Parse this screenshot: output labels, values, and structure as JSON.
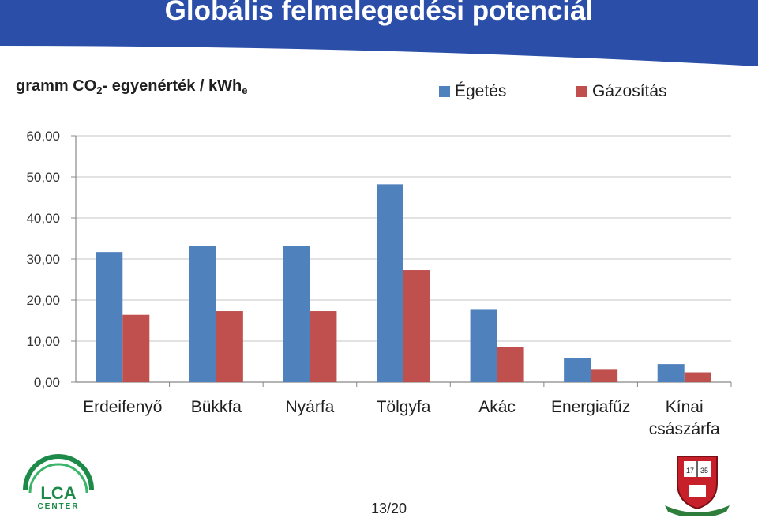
{
  "slide": {
    "title": "Globális felmelegedési potenciál",
    "page_number": "13/20"
  },
  "colors": {
    "banner": "#2b4fa8",
    "series_1": "#4f81bd",
    "series_2": "#c0504d"
  },
  "unit": {
    "prefix": "gramm CO",
    "sub1": "2",
    "middle": "- egyenérték / kWh",
    "sub2": "e"
  },
  "chart_data": {
    "type": "bar",
    "categories": [
      "Erdeifenyő",
      "Bükkfa",
      "Nyárfa",
      "Tölgyfa",
      "Akác",
      "Energiafűz",
      "Kínai császárfa"
    ],
    "series": [
      {
        "name": "Égetés",
        "values": [
          31.7,
          33.2,
          33.2,
          48.2,
          17.8,
          5.9,
          4.4
        ]
      },
      {
        "name": "Gázosítás",
        "values": [
          16.4,
          17.3,
          17.3,
          27.3,
          8.6,
          3.2,
          2.4
        ]
      }
    ],
    "ylim": [
      0,
      60
    ],
    "yticks": [
      "0,00",
      "10,00",
      "20,00",
      "30,00",
      "40,00",
      "50,00",
      "60,00"
    ],
    "grid": true,
    "legend": "top-right"
  },
  "logos": {
    "lca_icon": "lca-center-logo",
    "crest_icon": "university-crest",
    "lca_text": "LCA",
    "lca_subtext": "CENTER",
    "crest_year": "1735"
  }
}
